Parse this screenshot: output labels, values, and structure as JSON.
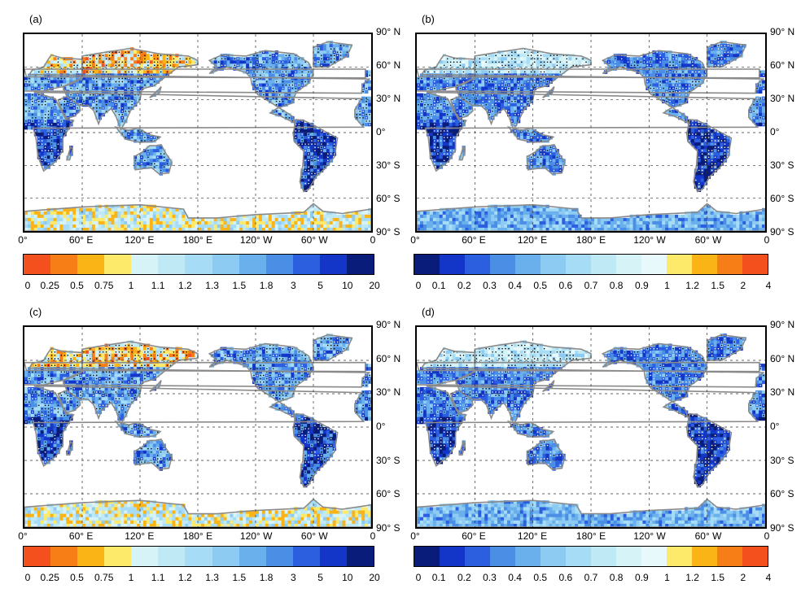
{
  "panels": [
    {
      "letter": "(a)",
      "scale": "a",
      "invert": false
    },
    {
      "letter": "(b)",
      "scale": "b",
      "invert": true
    },
    {
      "letter": "(c)",
      "scale": "a",
      "invert": false
    },
    {
      "letter": "(d)",
      "scale": "b",
      "invert": true
    }
  ],
  "lat_labels": [
    "90° N",
    "60° N",
    "30° N",
    "0°",
    "30° S",
    "60° S",
    "90° S"
  ],
  "lon_labels": [
    "0°",
    "60° E",
    "120° E",
    "180° E",
    "120° W",
    "60° W",
    "0"
  ],
  "colorbar_a": {
    "ticks": [
      "0",
      "0.25",
      "0.5",
      "0.75",
      "1",
      "1.1",
      "1.2",
      "1.3",
      "1.5",
      "1.8",
      "3",
      "5",
      "10",
      "20"
    ],
    "colors": [
      "#f4501e",
      "#f77e16",
      "#fbb416",
      "#fde96a",
      "#d6f3f7",
      "#c0e9f6",
      "#a6dcf5",
      "#8ecbf2",
      "#6ab0ec",
      "#4b8ee6",
      "#2b5fe0",
      "#1336c8",
      "#0a1c7a"
    ]
  },
  "colorbar_b": {
    "ticks": [
      "0",
      "0.1",
      "0.2",
      "0.3",
      "0.4",
      "0.5",
      "0.6",
      "0.7",
      "0.8",
      "0.9",
      "1",
      "1.2",
      "1.5",
      "2",
      "4"
    ],
    "colors": [
      "#0a1c7a",
      "#1336c8",
      "#2b5fe0",
      "#4b8ee6",
      "#6ab0ec",
      "#8ecbf2",
      "#a6dcf5",
      "#c0e9f6",
      "#d6f3f7",
      "#e8f9fb",
      "#fde96a",
      "#fbb416",
      "#f77e16",
      "#f4501e"
    ]
  }
}
